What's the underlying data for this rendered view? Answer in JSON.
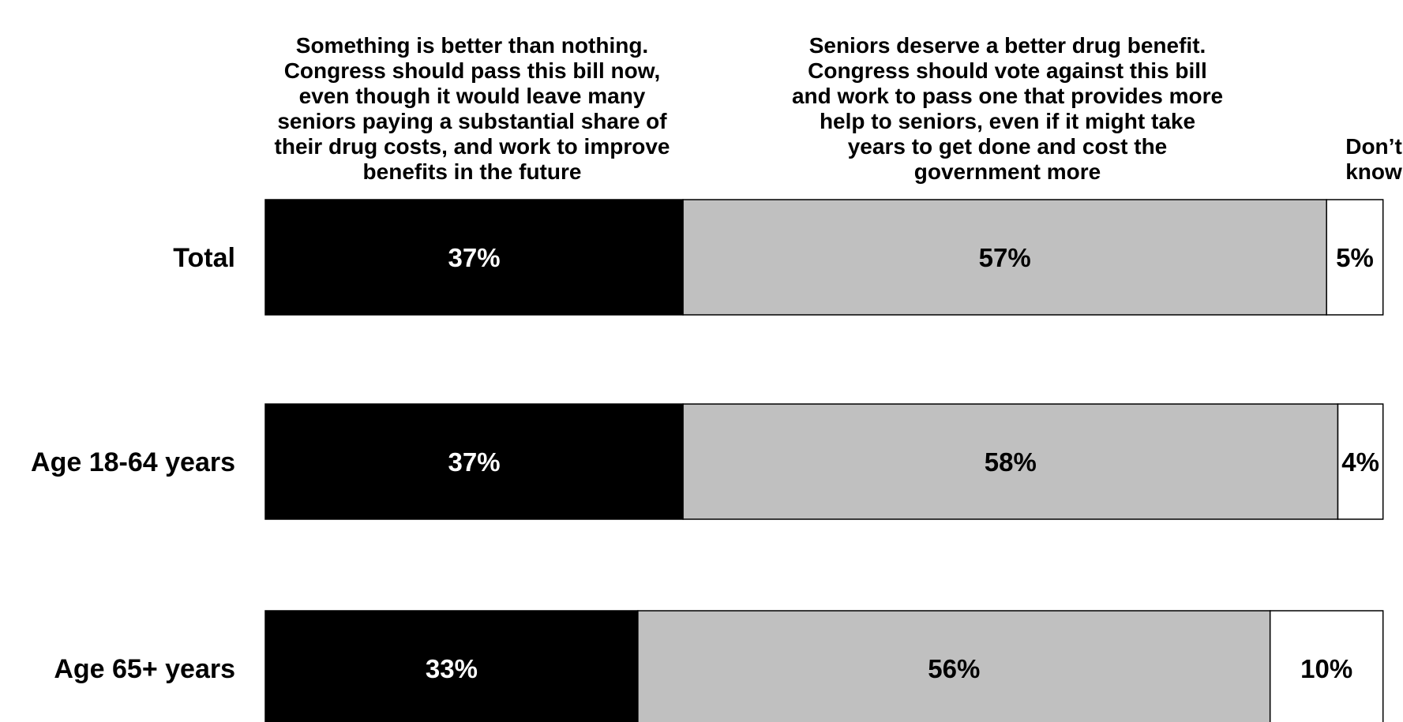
{
  "chart_data": {
    "type": "bar",
    "orientation": "horizontal",
    "stacked": true,
    "percent_stacked": true,
    "categories": [
      "Total",
      "Age 18-64 years",
      "Age 65+ years"
    ],
    "series": [
      {
        "name": "Something is better than nothing. Congress should pass this bill now, even though it would leave many seniors paying a substantial share of their drug costs, and work to improve benefits in the future",
        "name_lines": [
          "Something is better than nothing.",
          "Congress should pass this bill now,",
          "even though it would leave many",
          "seniors paying a substantial share of",
          "their drug costs, and work to improve",
          "benefits in the future"
        ],
        "values": [
          37,
          37,
          33
        ],
        "labels": [
          "37%",
          "37%",
          "33%"
        ],
        "color": "#000000",
        "label_color": "#ffffff"
      },
      {
        "name": "Seniors deserve a better drug benefit. Congress should vote against this bill and work to pass one that provides more help to seniors, even if it might take years to get done and cost the government more",
        "name_lines": [
          "Seniors deserve a better drug benefit.",
          "Congress should vote against this bill",
          "and work to pass one that provides more",
          "help to seniors, even if it might take",
          "years to get done and cost the",
          "government more"
        ],
        "values": [
          57,
          58,
          56
        ],
        "labels": [
          "57%",
          "58%",
          "56%"
        ],
        "color": "#c0c0c0",
        "label_color": "#000000"
      },
      {
        "name": "Don’t know",
        "name_lines": [
          "Don’t",
          "know"
        ],
        "values": [
          5,
          4,
          10
        ],
        "labels": [
          "5%",
          "4%",
          "10%"
        ],
        "color": "#ffffff",
        "label_color": "#000000"
      }
    ],
    "xlim": [
      0,
      100
    ],
    "grid": false,
    "legend_position": "top"
  }
}
